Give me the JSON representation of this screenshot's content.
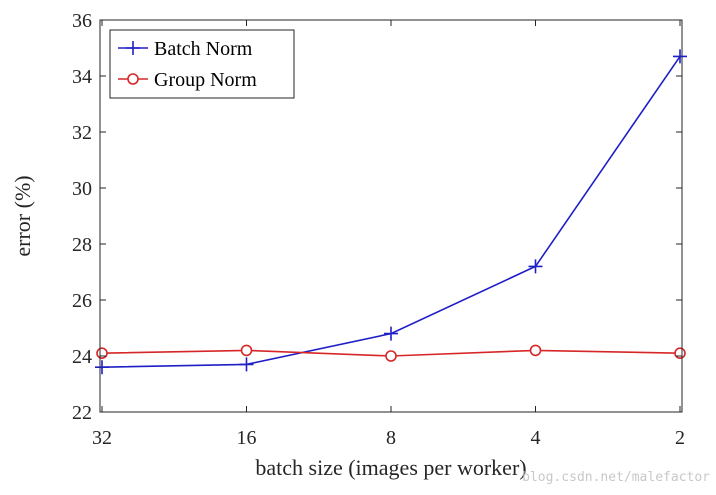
{
  "chart_data": {
    "type": "line",
    "title": "",
    "xlabel": "batch size (images per worker)",
    "ylabel": "error (%)",
    "categories": [
      "32",
      "16",
      "8",
      "4",
      "2"
    ],
    "ylim": [
      22,
      36
    ],
    "yticks": [
      22,
      24,
      26,
      28,
      30,
      32,
      34,
      36
    ],
    "grid": false,
    "legend_position": "top-left",
    "series": [
      {
        "name": "Batch Norm",
        "color": "#1f1fc8",
        "marker": "plus",
        "values": [
          23.6,
          23.7,
          24.8,
          27.2,
          34.7
        ]
      },
      {
        "name": "Group Norm",
        "color": "#d62728",
        "marker": "circle",
        "values": [
          24.1,
          24.2,
          24.0,
          24.2,
          24.1
        ]
      }
    ]
  },
  "watermark": "blog.csdn.net/malefactor"
}
